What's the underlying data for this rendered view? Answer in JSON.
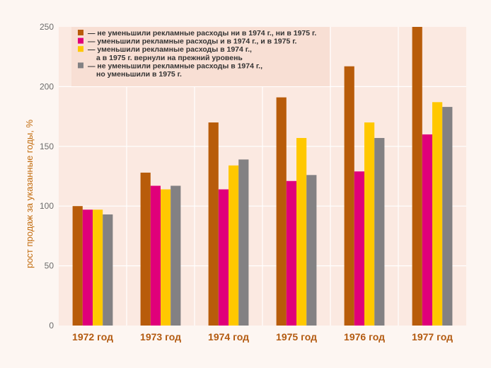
{
  "chart_data": {
    "type": "bar",
    "title": "",
    "xlabel": "",
    "ylabel": "рост продаж за указанные годы, %",
    "ylim": [
      0,
      250
    ],
    "yticks": [
      0,
      50,
      100,
      150,
      200,
      250
    ],
    "grid": true,
    "legend_position": "top-left",
    "categories": [
      "1972 год",
      "1973 год",
      "1974 год",
      "1975 год",
      "1976 год",
      "1977 год"
    ],
    "series": [
      {
        "name": "— не уменьшили рекламные расходы ни в 1974 г., ни в 1975 г.",
        "legend_lines": [
          "— не уменьшили рекламные расходы ни в 1974 г., ни в 1975 г."
        ],
        "color": "#b85c0a",
        "values": [
          100,
          128,
          170,
          191,
          217,
          250
        ]
      },
      {
        "name": "— уменьшили рекламные расходы и в 1974 г., и в 1975 г.",
        "legend_lines": [
          "— уменьшили рекламные расходы и в 1974 г., и в 1975 г."
        ],
        "color": "#e0007a",
        "values": [
          97,
          117,
          114,
          121,
          129,
          160
        ]
      },
      {
        "name": "— уменьшили рекламные расходы в 1974 г., а в 1975 г. вернули на прежний уровень",
        "legend_lines": [
          "— уменьшили рекламные расходы в 1974 г.,",
          "а в 1975 г. вернули на прежний уровень"
        ],
        "color": "#ffc800",
        "values": [
          97,
          114,
          134,
          157,
          170,
          187
        ]
      },
      {
        "name": "— не уменьшили рекламные расходы в 1974 г., но уменьшили в 1975 г.",
        "legend_lines": [
          "— не уменьшили рекламные расходы в 1974 г.,",
          "но уменьшили в 1975 г."
        ],
        "color": "#838183",
        "values": [
          93,
          117,
          139,
          126,
          157,
          183
        ]
      }
    ]
  },
  "colors": {
    "page_background": "#fdf6f2",
    "plot_background": "#fbe9e1",
    "legend_background": "#f8dfd4",
    "gridline": "#ffffff",
    "category_label": "#b35a10",
    "axis_label": "#c26c0e"
  }
}
